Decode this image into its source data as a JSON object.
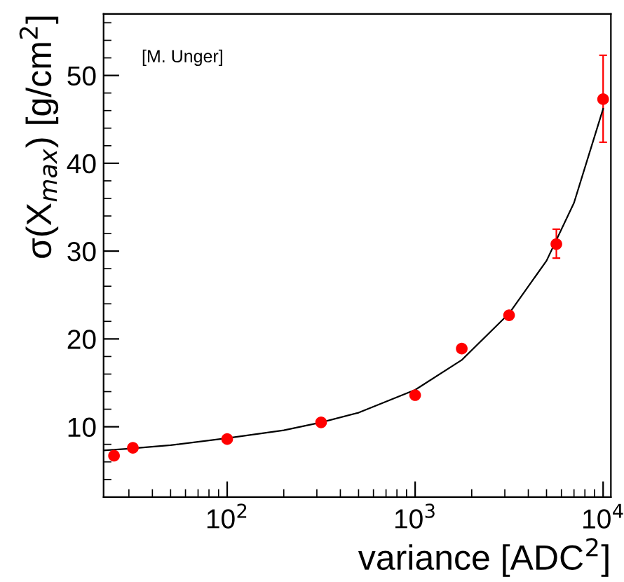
{
  "chart_data": {
    "type": "scatter",
    "xlabel": "variance [ADC$^{2}$]",
    "ylabel": "σ(X$_{max}$) [g/cm$^{2}$]",
    "log": "x",
    "xlim": [
      22,
      11000
    ],
    "ylim": [
      2,
      57
    ],
    "xticks": [
      {
        "value": 100,
        "label": "10$^{2}$"
      },
      {
        "value": 1000,
        "label": "10$^{3}$"
      },
      {
        "value": 10000,
        "label": "10$^{4}$"
      }
    ],
    "yticks": [
      10,
      20,
      30,
      40,
      50
    ],
    "grid": false,
    "marker": "circle",
    "annotations": [
      "[M. Unger]"
    ],
    "series": [
      {
        "color": "#ff0000",
        "x": [
          25,
          31.5,
          100,
          316,
          1000,
          1770,
          3160,
          5640,
          10000
        ],
        "values": [
          6.7,
          7.6,
          8.6,
          10.5,
          13.6,
          18.9,
          22.7,
          30.8,
          47.3
        ],
        "errors": [
          null,
          null,
          null,
          null,
          null,
          null,
          null,
          [
            29.2,
            32.5
          ],
          [
            42.4,
            52.3
          ]
        ]
      },
      {
        "type": "line",
        "color": "#000000",
        "marker": "none",
        "line_style": "solid",
        "x": [
          22,
          30,
          50,
          100,
          200,
          316,
          500,
          1000,
          1770,
          3160,
          5000,
          7000,
          10000
        ],
        "values": [
          7.3,
          7.5,
          7.9,
          8.7,
          9.6,
          10.5,
          11.6,
          14.2,
          17.6,
          22.9,
          28.9,
          35.5,
          46.2
        ]
      }
    ]
  }
}
